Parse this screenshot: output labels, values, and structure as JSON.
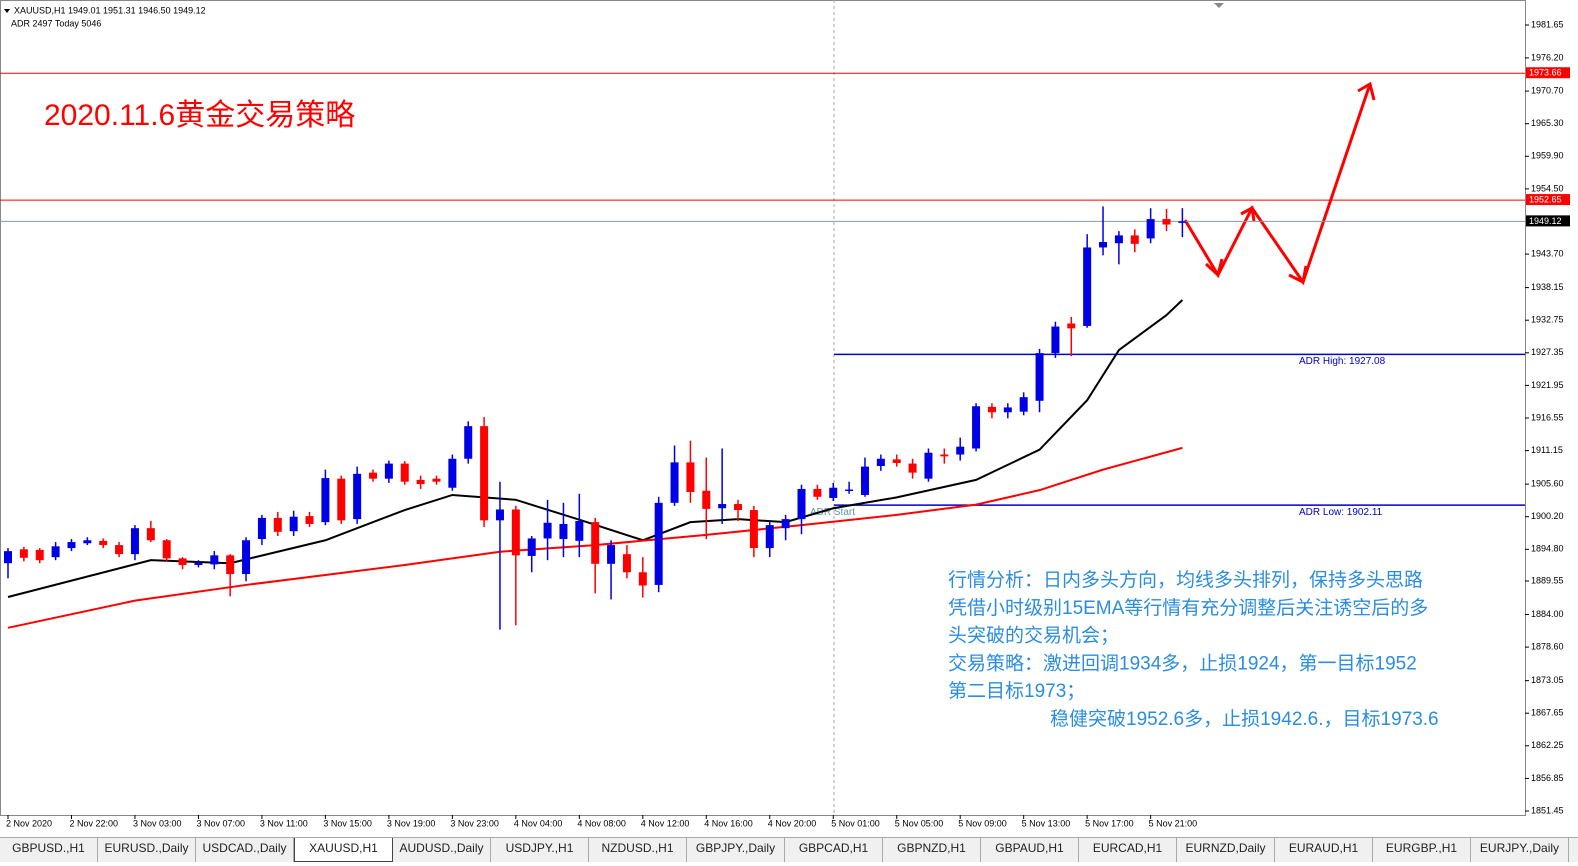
{
  "chart_data": {
    "type": "candlestick",
    "info": "XAUUSD,H1  1949.01 1951.31 1946.50 1949.12",
    "adr_info": "ADR 2497  Today 5046",
    "title": "2020.11.6黄金交易策略",
    "bull_color": "#0000e6",
    "bear_color": "#ff0000",
    "ylim": [
      1850.79,
      1985.79
    ],
    "yticks": [
      1981.65,
      {
        "value": 1976.2,
        "label": "1976.20"
      },
      {
        "value": 1970.7,
        "label": "1970.70"
      },
      {
        "value": 1965.3,
        "label": "1965.30"
      },
      {
        "value": 1959.9,
        "label": "1959.90"
      },
      {
        "value": 1954.5,
        "label": "1954.50"
      },
      {
        "value": 1943.7,
        "label": "1943.70"
      },
      1938.15,
      1932.75,
      1927.35,
      1921.95,
      1916.55,
      1911.15,
      {
        "value": 1905.6,
        "label": "1905.60"
      },
      {
        "value": 1900.2,
        "label": "1900.20"
      },
      {
        "value": 1894.8,
        "label": "1894.80"
      },
      1889.55,
      {
        "value": 1884.0,
        "label": "1884.00"
      },
      {
        "value": 1878.6,
        "label": "1878.60"
      },
      1873.05,
      1867.65,
      1862.25,
      1856.85,
      1851.45
    ],
    "categories": [
      "2 Nov 2020",
      null,
      null,
      null,
      "2 Nov 22:00",
      null,
      null,
      null,
      "3 Nov 03:00",
      null,
      null,
      null,
      "3 Nov 07:00",
      null,
      null,
      null,
      "3 Nov 11:00",
      null,
      null,
      null,
      "3 Nov 15:00",
      null,
      null,
      null,
      "3 Nov 19:00",
      null,
      null,
      null,
      "3 Nov 23:00",
      null,
      null,
      null,
      "4 Nov 04:00",
      null,
      null,
      null,
      "4 Nov 08:00",
      null,
      null,
      null,
      "4 Nov 12:00",
      null,
      null,
      null,
      "4 Nov 16:00",
      null,
      null,
      null,
      "4 Nov 20:00",
      null,
      null,
      null,
      "5 Nov 01:00",
      null,
      null,
      null,
      "5 Nov 05:00",
      null,
      null,
      null,
      "5 Nov 09:00",
      null,
      null,
      null,
      "5 Nov 13:00",
      null,
      null,
      null,
      "5 Nov 17:00",
      null,
      null,
      null,
      "5 Nov 21:00",
      null,
      null
    ],
    "open": [
      1892.5,
      1894.8,
      1894.7,
      1893.5,
      1895,
      1895.8,
      1896.2,
      1895.5,
      1894,
      1898.3,
      1896.3,
      1893.3,
      1892.2,
      1892.3,
      1893.8,
      1890.7,
      1896.5,
      1900.0,
      1897.8,
      1900.3,
      1899.3,
      1906.5,
      1899.8,
      1907.5,
      1906.5,
      1909,
      1906.3,
      1906.5,
      1905,
      1909.8,
      1915.2,
      1899.6,
      1901.4,
      1893.7,
      1896.6,
      1896.5,
      1896.2,
      1899.3,
      1892.4,
      1894,
      1891,
      1888.9,
      1902.5,
      1909.2,
      1904.5,
      1901.6,
      1902.3,
      1901.3,
      1895,
      1898.3,
      1899.8,
      1904.8,
      1903.3,
      1904.5,
      1903.8,
      1908.6,
      1909.7,
      1909,
      1906.5,
      1910.5,
      1910.5,
      1911.5,
      1918.4,
      1917.5,
      1917.6,
      1919.4,
      1927.3,
      1932.2,
      1931.8,
      1944.8,
      1945.5,
      1946.8,
      1946.3,
      1949.5,
      1949.01
    ],
    "high": [
      1895,
      1895.2,
      1895,
      1896,
      1896.5,
      1896.8,
      1896.6,
      1896,
      1898.8,
      1899.5,
      1896.5,
      1893.5,
      1893,
      1894.5,
      1894,
      1896.8,
      1900.5,
      1901,
      1901.2,
      1901,
      1908,
      1907,
      1908.5,
      1908,
      1909.5,
      1909.4,
      1907,
      1907,
      1910.5,
      1916,
      1916.7,
      1906,
      1902,
      1897,
      1903,
      1902.5,
      1904,
      1900,
      1896.3,
      1895.5,
      1893.5,
      1903.5,
      1912,
      1912.8,
      1910,
      1911.5,
      1903,
      1902,
      1899.5,
      1900.5,
      1905.5,
      1905.5,
      1905.8,
      1906,
      1910,
      1910.5,
      1910.5,
      1909.8,
      1911.5,
      1911.5,
      1913.3,
      1919,
      1919,
      1919,
      1920.8,
      1928,
      1932.5,
      1933.3,
      1947,
      1951.6,
      1947.5,
      1947.8,
      1951.3,
      1951.2,
      1951.31
    ],
    "low": [
      1890,
      1892.8,
      1892.5,
      1893,
      1894.5,
      1895.5,
      1895,
      1893.5,
      1893,
      1896,
      1892.8,
      1891.5,
      1891.8,
      1891.5,
      1887,
      1889.5,
      1895.5,
      1897,
      1897,
      1898.5,
      1898.8,
      1899,
      1899,
      1906,
      1905.8,
      1905.5,
      1904.8,
      1905.5,
      1904.5,
      1909,
      1898.5,
      1881.5,
      1882.2,
      1891,
      1893,
      1893.5,
      1893.5,
      1887.5,
      1886.5,
      1890,
      1886.8,
      1887.7,
      1902,
      1902.5,
      1896.5,
      1899,
      1899.5,
      1893.5,
      1893.5,
      1896.3,
      1897.3,
      1903,
      1902.8,
      1904,
      1903.5,
      1907.8,
      1908.5,
      1906.5,
      1906,
      1909,
      1909.5,
      1911,
      1916.5,
      1916.5,
      1917,
      1917.5,
      1926.5,
      1926.8,
      1931.5,
      1943.5,
      1942,
      1944,
      1945.5,
      1947.5,
      1946.5
    ],
    "close": [
      1894.5,
      1893.4,
      1893.0,
      1895.3,
      1896,
      1896.3,
      1895.5,
      1894,
      1898.3,
      1896.3,
      1893.3,
      1892.2,
      1892.6,
      1893.8,
      1890.7,
      1896.3,
      1900.0,
      1897.7,
      1900.2,
      1899.0,
      1906.6,
      1899.6,
      1907.3,
      1906.5,
      1909,
      1906,
      1905.6,
      1906,
      1909.8,
      1915.2,
      1899.6,
      1901.4,
      1893.8,
      1896.6,
      1899.2,
      1899,
      1899.5,
      1892.4,
      1895.5,
      1891,
      1888.8,
      1902.5,
      1909.2,
      1904.3,
      1901.5,
      1902.3,
      1901.3,
      1895,
      1898.8,
      1899.8,
      1904.8,
      1903.5,
      1905,
      1904.7,
      1908.5,
      1909.8,
      1909.1,
      1907.5,
      1910.8,
      1910.2,
      1911.8,
      1918.5,
      1917.5,
      1918.3,
      1920,
      1927.3,
      1931.7,
      1931.4,
      1944.8,
      1945.7,
      1946.8,
      1945.4,
      1949.5,
      1948.6,
      1949.12
    ],
    "lines": [
      {
        "color": "#000000",
        "x": [
          0,
          9,
          14,
          20,
          25,
          28,
          32,
          36,
          40,
          43,
          46,
          49,
          52,
          56,
          61,
          65,
          68,
          70,
          73,
          74
        ],
        "values": [
          1886.9,
          1893.0,
          1892.5,
          1896.3,
          1901.3,
          1903.8,
          1903.0,
          1899.7,
          1896.3,
          1899.3,
          1899.8,
          1899.3,
          1901.6,
          1903.4,
          1906.3,
          1911.3,
          1919.5,
          1927.8,
          1933.6,
          1936.1
        ]
      },
      {
        "color": "#ff0000",
        "x": [
          0,
          8,
          15,
          25,
          31,
          37,
          44,
          50,
          56,
          61,
          65,
          69,
          74
        ],
        "values": [
          1881.8,
          1886.3,
          1888.9,
          1892.2,
          1894.4,
          1895.5,
          1897.2,
          1898.8,
          1900.5,
          1902.2,
          1904.6,
          1908.0,
          1911.6
        ]
      }
    ],
    "hlines": [
      {
        "value": 1973.66,
        "color": "#ff0000"
      },
      {
        "value": 1952.65,
        "color": "#ff0000"
      }
    ],
    "adr_start": "ADR Start",
    "adr_lines": [
      {
        "label": "ADR High: 1927.08",
        "value": 1927.08
      },
      {
        "label": "ADR Low: 1902.11",
        "value": 1902.11
      }
    ],
    "analysis": [
      "行情分析：日内多头方向，均线多头排列，保持多头思路",
      "凭借小时级别15EMA等行情有充分调整后关注诱空后的多",
      "头突破的交易机会；",
      "交易策略：激进回调1934多，止损1924，第一目标1952",
      "第二目标1973；",
      "稳健突破1952.6多，止损1942.6.，目标1973.6"
    ]
  },
  "tabs": [
    "GBPUSD.,H1",
    "EURUSD.,Daily",
    "USDCAD.,Daily",
    "XAUUSD,H1",
    "AUDUSD.,Daily",
    "USDJPY.,H1",
    "NZDUSD.,H1",
    "GBPJPY.,Daily",
    "GBPCAD,H1",
    "GBPNZD,H1",
    "GBPAUD,H1",
    "EURCAD,H1",
    "EURNZD,Daily",
    "EURAUD,H1",
    "EURGBP.,H1",
    "EURJPY.,Daily"
  ]
}
